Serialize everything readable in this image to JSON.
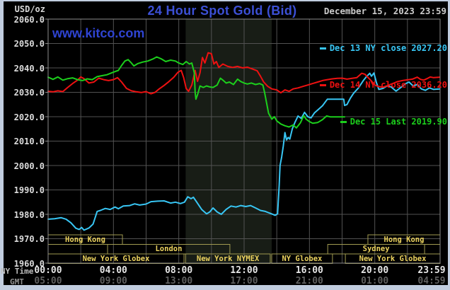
{
  "header": {
    "units_label": "USD/oz",
    "title": "24 Hour Spot Gold (Bid)",
    "datetime": "December 15, 2023 23:59",
    "watermark": "www.kitco.com"
  },
  "legend": {
    "entries": [
      {
        "label": "Dec 13 NY close 2027.20",
        "color": "#38c6f4"
      },
      {
        "label": "Dec 14 NY close 2036.20",
        "color": "#ee1111"
      },
      {
        "label": "Dec 15 Last 2019.90",
        "color": "#1ccf1c"
      }
    ]
  },
  "axis_labels": {
    "ny": "NY Time",
    "gmt": "GMT"
  },
  "colors": {
    "page_bg": "#c1cddf",
    "plot_bg": "#000000",
    "shade": "#181d16",
    "grid": "#525252",
    "border": "#8c8c8c",
    "session_border": "#a09a50",
    "session_text": "#ecd35f"
  },
  "chart_data": {
    "type": "line",
    "title": "24 Hour Spot Gold (Bid)",
    "x_axis": {
      "range_hours": [
        0,
        24
      ],
      "ny_ticks": [
        "00:00",
        "04:00",
        "08:00",
        "12:00",
        "16:00",
        "20:00",
        "23:59"
      ],
      "gmt_ticks": [
        "05:00",
        "09:00",
        "13:00",
        "17:00",
        "21:00",
        "01:00",
        "04:59"
      ],
      "tick_hours": [
        0,
        4,
        8,
        12,
        16,
        20,
        24
      ]
    },
    "y_axis": {
      "label": "USD/oz",
      "range": [
        1960,
        2060
      ],
      "tick_step": 10,
      "ticks": [
        "2060.0",
        "2050.0",
        "2040.0",
        "2030.0",
        "2020.0",
        "2010.0",
        "2000.0",
        "1990.0",
        "1980.0",
        "1970.0",
        "1960.0"
      ]
    },
    "shaded_session_hours": [
      8.42,
      13.69
    ],
    "sessions": [
      {
        "row": 0,
        "label": "Hong Kong",
        "start": 0.0,
        "end": 4.55
      },
      {
        "row": 0,
        "label": "Hong Kong",
        "start": 19.58,
        "end": 24.0
      },
      {
        "row": 1,
        "label": "London",
        "start": 3.64,
        "end": 11.13
      },
      {
        "row": 1,
        "label": "Sydney",
        "start": 17.12,
        "end": 23.05
      },
      {
        "row": 2,
        "label": "New York Globex",
        "start": 0.0,
        "end": 8.32
      },
      {
        "row": 2,
        "label": "New York NYMEX",
        "start": 8.42,
        "end": 13.6
      },
      {
        "row": 2,
        "label": "NY Globex",
        "start": 13.69,
        "end": 17.41
      },
      {
        "row": 2,
        "label": "New York Globex",
        "start": 18.2,
        "end": 24.0
      }
    ],
    "series": [
      {
        "name": "Dec 13",
        "color": "#38c6f4",
        "points": [
          [
            0.0,
            1978.0
          ],
          [
            0.4,
            1978.2
          ],
          [
            0.8,
            1978.6
          ],
          [
            1.1,
            1978.0
          ],
          [
            1.4,
            1976.5
          ],
          [
            1.7,
            1974.3
          ],
          [
            1.9,
            1973.8
          ],
          [
            2.05,
            1974.6
          ],
          [
            2.2,
            1973.5
          ],
          [
            2.5,
            1974.4
          ],
          [
            2.75,
            1976.0
          ],
          [
            2.9,
            1979.0
          ],
          [
            3.0,
            1981.2
          ],
          [
            3.2,
            1981.6
          ],
          [
            3.5,
            1982.4
          ],
          [
            3.8,
            1982.0
          ],
          [
            4.1,
            1983.0
          ],
          [
            4.3,
            1982.3
          ],
          [
            4.6,
            1983.4
          ],
          [
            5.0,
            1983.6
          ],
          [
            5.3,
            1984.3
          ],
          [
            5.6,
            1983.8
          ],
          [
            6.0,
            1984.2
          ],
          [
            6.3,
            1985.2
          ],
          [
            6.7,
            1985.4
          ],
          [
            7.1,
            1985.5
          ],
          [
            7.5,
            1984.6
          ],
          [
            7.8,
            1985.0
          ],
          [
            8.1,
            1984.4
          ],
          [
            8.35,
            1985.0
          ],
          [
            8.55,
            1987.2
          ],
          [
            8.75,
            1986.4
          ],
          [
            8.9,
            1987.0
          ],
          [
            9.1,
            1985.0
          ],
          [
            9.4,
            1982.0
          ],
          [
            9.7,
            1980.2
          ],
          [
            9.9,
            1981.0
          ],
          [
            10.1,
            1982.6
          ],
          [
            10.35,
            1981.0
          ],
          [
            10.6,
            1980.0
          ],
          [
            10.9,
            1982.0
          ],
          [
            11.2,
            1983.4
          ],
          [
            11.5,
            1983.0
          ],
          [
            11.8,
            1983.6
          ],
          [
            12.1,
            1983.2
          ],
          [
            12.4,
            1983.6
          ],
          [
            12.7,
            1982.6
          ],
          [
            13.0,
            1981.6
          ],
          [
            13.3,
            1981.2
          ],
          [
            13.6,
            1980.4
          ],
          [
            13.9,
            1979.6
          ],
          [
            14.05,
            1980.2
          ],
          [
            14.15,
            1992.0
          ],
          [
            14.2,
            2000.0
          ],
          [
            14.3,
            2003.5
          ],
          [
            14.4,
            2008.0
          ],
          [
            14.5,
            2013.5
          ],
          [
            14.6,
            2010.5
          ],
          [
            14.7,
            2011.5
          ],
          [
            14.8,
            2010.8
          ],
          [
            14.95,
            2015.0
          ],
          [
            15.1,
            2017.5
          ],
          [
            15.3,
            2020.3
          ],
          [
            15.5,
            2019.3
          ],
          [
            15.7,
            2021.8
          ],
          [
            15.9,
            2020.0
          ],
          [
            16.1,
            2019.5
          ],
          [
            16.3,
            2021.5
          ],
          [
            16.6,
            2023.3
          ],
          [
            16.8,
            2024.5
          ],
          [
            17.0,
            2026.3
          ],
          [
            17.1,
            2027.2
          ],
          [
            18.1,
            2027.2
          ],
          [
            18.15,
            2024.6
          ],
          [
            18.3,
            2025.0
          ],
          [
            18.5,
            2027.5
          ],
          [
            18.7,
            2029.6
          ],
          [
            19.0,
            2031.8
          ],
          [
            19.3,
            2034.8
          ],
          [
            19.5,
            2036.5
          ],
          [
            19.7,
            2037.8
          ],
          [
            19.8,
            2036.6
          ],
          [
            19.95,
            2037.9
          ],
          [
            20.1,
            2034.0
          ],
          [
            20.25,
            2031.2
          ],
          [
            20.5,
            2031.6
          ],
          [
            20.75,
            2032.6
          ],
          [
            21.0,
            2032.2
          ],
          [
            21.3,
            2030.5
          ],
          [
            21.6,
            2032.0
          ],
          [
            21.9,
            2033.6
          ],
          [
            22.1,
            2034.2
          ],
          [
            22.35,
            2032.6
          ],
          [
            22.6,
            2033.2
          ],
          [
            22.85,
            2031.4
          ],
          [
            23.1,
            2030.8
          ],
          [
            23.35,
            2031.8
          ],
          [
            23.6,
            2031.2
          ],
          [
            23.98,
            2031.4
          ]
        ]
      },
      {
        "name": "Dec 14",
        "color": "#ee1111",
        "points": [
          [
            0.0,
            2030.4
          ],
          [
            0.3,
            2030.2
          ],
          [
            0.6,
            2030.6
          ],
          [
            0.9,
            2030.3
          ],
          [
            1.2,
            2032.0
          ],
          [
            1.5,
            2033.6
          ],
          [
            1.8,
            2035.0
          ],
          [
            2.0,
            2036.3
          ],
          [
            2.2,
            2035.6
          ],
          [
            2.5,
            2033.8
          ],
          [
            2.8,
            2034.2
          ],
          [
            3.1,
            2035.8
          ],
          [
            3.4,
            2035.2
          ],
          [
            3.7,
            2034.8
          ],
          [
            4.0,
            2035.2
          ],
          [
            4.25,
            2036.0
          ],
          [
            4.5,
            2034.2
          ],
          [
            4.8,
            2031.6
          ],
          [
            5.1,
            2030.6
          ],
          [
            5.4,
            2030.2
          ],
          [
            5.7,
            2029.9
          ],
          [
            6.0,
            2030.3
          ],
          [
            6.3,
            2029.4
          ],
          [
            6.55,
            2030.0
          ],
          [
            6.8,
            2031.4
          ],
          [
            7.1,
            2032.8
          ],
          [
            7.4,
            2034.4
          ],
          [
            7.7,
            2036.2
          ],
          [
            7.95,
            2038.2
          ],
          [
            8.15,
            2039.0
          ],
          [
            8.3,
            2036.0
          ],
          [
            8.45,
            2031.6
          ],
          [
            8.6,
            2030.4
          ],
          [
            8.8,
            2033.0
          ],
          [
            9.0,
            2039.0
          ],
          [
            9.15,
            2034.5
          ],
          [
            9.3,
            2038.0
          ],
          [
            9.45,
            2044.3
          ],
          [
            9.6,
            2042.0
          ],
          [
            9.8,
            2046.2
          ],
          [
            10.0,
            2045.8
          ],
          [
            10.15,
            2041.6
          ],
          [
            10.3,
            2042.6
          ],
          [
            10.45,
            2040.2
          ],
          [
            10.7,
            2041.6
          ],
          [
            11.0,
            2040.6
          ],
          [
            11.3,
            2040.2
          ],
          [
            11.6,
            2040.6
          ],
          [
            11.9,
            2040.0
          ],
          [
            12.2,
            2040.3
          ],
          [
            12.5,
            2039.6
          ],
          [
            12.8,
            2038.8
          ],
          [
            13.0,
            2036.6
          ],
          [
            13.2,
            2034.2
          ],
          [
            13.45,
            2032.4
          ],
          [
            13.7,
            2031.4
          ],
          [
            14.0,
            2031.0
          ],
          [
            14.25,
            2029.8
          ],
          [
            14.5,
            2031.0
          ],
          [
            14.75,
            2030.4
          ],
          [
            15.0,
            2031.4
          ],
          [
            15.3,
            2031.8
          ],
          [
            15.6,
            2032.4
          ],
          [
            15.9,
            2033.0
          ],
          [
            16.2,
            2033.6
          ],
          [
            16.5,
            2034.2
          ],
          [
            16.8,
            2034.8
          ],
          [
            17.1,
            2035.2
          ],
          [
            17.4,
            2035.5
          ],
          [
            17.7,
            2035.7
          ],
          [
            18.0,
            2035.8
          ],
          [
            18.3,
            2035.4
          ],
          [
            18.6,
            2035.7
          ],
          [
            18.9,
            2036.0
          ],
          [
            19.2,
            2037.8
          ],
          [
            19.4,
            2037.4
          ],
          [
            19.6,
            2036.0
          ],
          [
            19.8,
            2034.6
          ],
          [
            20.0,
            2033.0
          ],
          [
            20.2,
            2032.4
          ],
          [
            20.5,
            2032.1
          ],
          [
            20.8,
            2032.8
          ],
          [
            21.1,
            2033.6
          ],
          [
            21.4,
            2034.4
          ],
          [
            21.7,
            2034.8
          ],
          [
            22.0,
            2035.1
          ],
          [
            22.3,
            2035.4
          ],
          [
            22.6,
            2036.2
          ],
          [
            22.8,
            2035.3
          ],
          [
            23.0,
            2035.0
          ],
          [
            23.2,
            2035.6
          ],
          [
            23.4,
            2036.3
          ],
          [
            23.6,
            2036.0
          ],
          [
            23.98,
            2036.2
          ]
        ]
      },
      {
        "name": "Dec 15",
        "color": "#1ccf1c",
        "points": [
          [
            0.0,
            2036.2
          ],
          [
            0.3,
            2035.3
          ],
          [
            0.6,
            2036.3
          ],
          [
            0.9,
            2035.0
          ],
          [
            1.2,
            2035.6
          ],
          [
            1.5,
            2035.9
          ],
          [
            1.8,
            2035.2
          ],
          [
            2.1,
            2034.8
          ],
          [
            2.4,
            2035.5
          ],
          [
            2.7,
            2035.2
          ],
          [
            3.0,
            2036.4
          ],
          [
            3.3,
            2036.8
          ],
          [
            3.6,
            2037.2
          ],
          [
            3.9,
            2038.0
          ],
          [
            4.1,
            2038.5
          ],
          [
            4.3,
            2039.0
          ],
          [
            4.5,
            2041.0
          ],
          [
            4.7,
            2042.8
          ],
          [
            4.9,
            2043.4
          ],
          [
            5.1,
            2042.0
          ],
          [
            5.25,
            2040.8
          ],
          [
            5.5,
            2041.8
          ],
          [
            5.8,
            2042.4
          ],
          [
            6.1,
            2042.8
          ],
          [
            6.4,
            2043.6
          ],
          [
            6.65,
            2044.5
          ],
          [
            6.9,
            2043.8
          ],
          [
            7.2,
            2042.6
          ],
          [
            7.5,
            2043.2
          ],
          [
            7.8,
            2042.8
          ],
          [
            8.0,
            2042.0
          ],
          [
            8.25,
            2041.4
          ],
          [
            8.45,
            2042.6
          ],
          [
            8.65,
            2041.6
          ],
          [
            8.8,
            2042.0
          ],
          [
            8.95,
            2038.0
          ],
          [
            9.0,
            2030.0
          ],
          [
            9.05,
            2027.2
          ],
          [
            9.15,
            2029.0
          ],
          [
            9.3,
            2032.6
          ],
          [
            9.5,
            2032.0
          ],
          [
            9.7,
            2032.6
          ],
          [
            9.9,
            2032.2
          ],
          [
            10.1,
            2032.0
          ],
          [
            10.35,
            2033.0
          ],
          [
            10.55,
            2035.8
          ],
          [
            10.7,
            2035.0
          ],
          [
            10.9,
            2033.8
          ],
          [
            11.1,
            2034.2
          ],
          [
            11.35,
            2033.2
          ],
          [
            11.6,
            2035.4
          ],
          [
            11.8,
            2034.4
          ],
          [
            12.0,
            2033.8
          ],
          [
            12.2,
            2033.4
          ],
          [
            12.45,
            2033.8
          ],
          [
            12.7,
            2033.2
          ],
          [
            12.95,
            2033.6
          ],
          [
            13.15,
            2033.0
          ],
          [
            13.25,
            2030.0
          ],
          [
            13.5,
            2021.4
          ],
          [
            13.7,
            2019.0
          ],
          [
            13.85,
            2020.0
          ],
          [
            14.0,
            2018.3
          ],
          [
            14.25,
            2017.0
          ],
          [
            14.5,
            2016.3
          ],
          [
            14.75,
            2015.8
          ],
          [
            15.0,
            2016.6
          ],
          [
            15.2,
            2015.4
          ],
          [
            15.45,
            2017.5
          ],
          [
            15.65,
            2020.4
          ],
          [
            15.8,
            2019.0
          ],
          [
            16.0,
            2018.0
          ],
          [
            16.2,
            2017.3
          ],
          [
            16.5,
            2017.6
          ],
          [
            16.8,
            2018.8
          ],
          [
            17.05,
            2020.3
          ],
          [
            17.3,
            2019.9
          ],
          [
            18.15,
            2019.9
          ]
        ]
      }
    ]
  }
}
